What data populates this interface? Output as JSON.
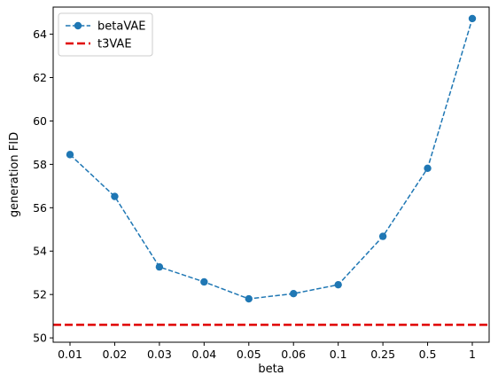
{
  "chart_data": {
    "type": "line",
    "categories": [
      "0.01",
      "0.02",
      "0.03",
      "0.04",
      "0.05",
      "0.06",
      "0.1",
      "0.25",
      "0.5",
      "1"
    ],
    "series": [
      {
        "name": "betaVAE",
        "values": [
          58.45,
          56.52,
          53.27,
          52.58,
          51.8,
          52.04,
          52.45,
          54.68,
          57.82,
          64.72
        ],
        "color": "#1f77b4",
        "line_style": "dashed",
        "marker": "circle"
      },
      {
        "name": "t3VAE",
        "type": "horizontal-line",
        "value": 50.6,
        "color": "#e00000",
        "line_style": "dashed"
      }
    ],
    "xlabel": "beta",
    "ylabel": "generation FID",
    "ylim": [
      49.8,
      65.25
    ],
    "yticks": [
      50,
      52,
      54,
      56,
      58,
      60,
      62,
      64
    ],
    "grid": false,
    "legend_position": "upper-left"
  }
}
